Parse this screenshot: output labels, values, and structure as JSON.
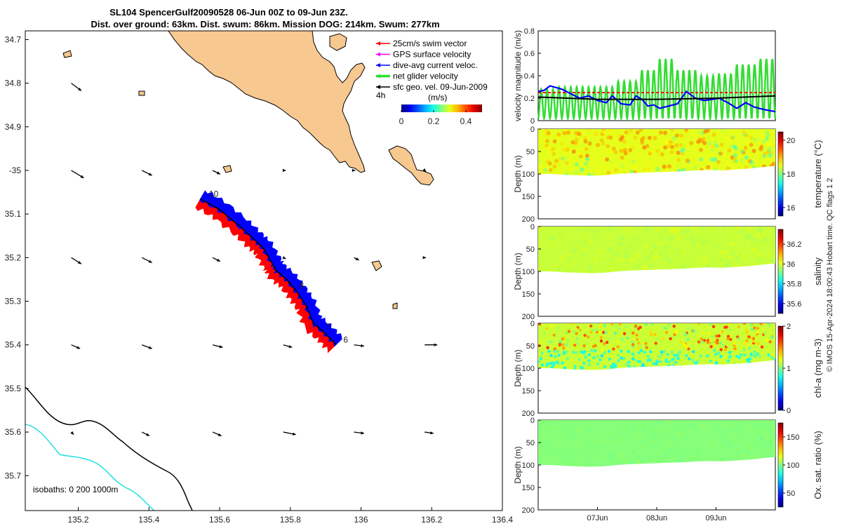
{
  "title": {
    "line1": "SL104 SpencerGulf20090528 06-Jun 00Z to 09-Jun 23Z.",
    "line2": "Dist. over ground: 63km. Dist. swum: 86km. Mission DOG: 214km. Swum: 277km"
  },
  "colors": {
    "land": "#f7c890",
    "glider_red": "#ff0000",
    "glider_blue": "#0000ff",
    "net_green": "#33dd33",
    "isobath0": "#000000",
    "isobath200": "#22e0e0"
  },
  "chart_data": [
    {
      "id": "map",
      "type": "scatter",
      "title": "SL104 SpencerGulf20090528 06-Jun 00Z to 09-Jun 23Z.",
      "xlabel": "",
      "ylabel": "",
      "xlim": [
        135.05,
        136.4
      ],
      "ylim": [
        34.68,
        35.78
      ],
      "xticks": [
        135.2,
        135.4,
        135.6,
        135.8,
        136,
        136.2,
        136.4
      ],
      "xtick_labels": [
        "135.2",
        "135.4",
        "135.6",
        "135.8",
        "136",
        "136.2",
        "136.4"
      ],
      "yticks": [
        34.7,
        34.8,
        34.9,
        35.0,
        35.1,
        35.2,
        35.3,
        35.4,
        35.5,
        35.6,
        35.7
      ],
      "ytick_labels": [
        "34.7",
        "34.8",
        "34.9",
        "-35",
        "35.1",
        "35.2",
        "35.3",
        "35.4",
        "35.5",
        "35.6",
        "35.7"
      ],
      "legend": [
        {
          "label": "25cm/s swim vector",
          "color": "#ff0000"
        },
        {
          "label": "GPS surface velocity",
          "color": "#ff00ff"
        },
        {
          "label": "dive-avg current veloc.",
          "color": "#0000ff"
        },
        {
          "label": "net glider velocity",
          "color": "#33dd33"
        },
        {
          "label": "sfc geo. vel. 09-Jun-2009",
          "color": "#000000"
        }
      ],
      "colorbar": {
        "label": "(m/s)",
        "ticks": [
          "0",
          "0.2",
          "0.4"
        ],
        "range": [
          0,
          0.5
        ],
        "note": "4h"
      },
      "isobath_label": "isobaths: 0   200  1000m",
      "track": [
        [
          135.545,
          35.065
        ],
        [
          135.6,
          35.09
        ],
        [
          135.66,
          35.13
        ],
        [
          135.7,
          35.16
        ],
        [
          135.725,
          35.18
        ],
        [
          135.75,
          35.215
        ],
        [
          135.76,
          35.23
        ],
        [
          135.79,
          35.25
        ],
        [
          135.82,
          35.28
        ],
        [
          135.845,
          35.31
        ],
        [
          135.865,
          35.35
        ],
        [
          135.9,
          35.375
        ],
        [
          135.93,
          35.4
        ]
      ],
      "track_labels": [
        {
          "text": "10",
          "lon": 135.57,
          "lat": 35.06
        },
        {
          "text": "8",
          "lon": 135.825,
          "lat": 35.27
        },
        {
          "text": "7",
          "lon": 135.9,
          "lat": 35.365
        },
        {
          "text": "6",
          "lon": 135.95,
          "lat": 35.395
        }
      ],
      "vector_grid": {
        "lons": [
          135.2,
          135.4,
          135.6,
          135.8,
          136.0,
          136.2
        ],
        "lats": [
          34.8,
          35.0,
          35.2,
          35.4,
          35.6
        ],
        "u": [
          [
            0.08,
            0,
            0,
            0,
            0,
            0
          ],
          [
            0.1,
            0.08,
            0.06,
            0.02,
            0.01,
            0.01
          ],
          [
            0.08,
            0.08,
            0.06,
            0.02,
            0.04,
            0.01
          ],
          [
            0.07,
            0.08,
            0.08,
            0.07,
            0.08,
            0.1
          ],
          [
            0.02,
            0.06,
            0.07,
            0.1,
            0.08,
            0.07
          ]
        ],
        "v": [
          [
            -0.06,
            0,
            0,
            0,
            0,
            0
          ],
          [
            -0.06,
            -0.04,
            -0.03,
            0,
            0,
            -0.01
          ],
          [
            -0.05,
            -0.04,
            -0.03,
            -0.01,
            -0.02,
            0
          ],
          [
            -0.03,
            -0.03,
            -0.02,
            -0.02,
            -0.01,
            0
          ],
          [
            -0.02,
            -0.03,
            -0.03,
            -0.02,
            -0.01,
            -0.01
          ]
        ]
      }
    },
    {
      "id": "velocity",
      "type": "line",
      "ylabel": "velocity magnitude (m/s)",
      "xlim": [
        6.0,
        10.0
      ],
      "ylim": [
        0,
        0.8
      ],
      "yticks": [
        0,
        0.2,
        0.4,
        0.6,
        0.8
      ],
      "ytick_labels": [
        "0",
        "0.2",
        "0.4",
        "0.6",
        "0.8"
      ],
      "series": [
        {
          "name": "net glider velocity",
          "color": "#33dd33",
          "type": "oscillating",
          "period_days": 0.1,
          "min": 0.02,
          "peaks": [
            0.28,
            0.3,
            0.3,
            0.3,
            0.35,
            0.45,
            0.55,
            0.45,
            0.4,
            0.42,
            0.5,
            0.55
          ]
        },
        {
          "name": "dive-avg current veloc.",
          "color": "#0000ff",
          "x": [
            6.0,
            6.1,
            6.2,
            6.4,
            6.55,
            6.7,
            6.85,
            7.0,
            7.15,
            7.25,
            7.4,
            7.55,
            7.65,
            7.75,
            7.85,
            7.95,
            8.05,
            8.2,
            8.35,
            8.5,
            8.65,
            8.8,
            8.95,
            9.05,
            9.2,
            9.35,
            9.5,
            9.65,
            9.8,
            10.0
          ],
          "y": [
            0.26,
            0.27,
            0.31,
            0.28,
            0.24,
            0.2,
            0.22,
            0.18,
            0.16,
            0.22,
            0.15,
            0.14,
            0.22,
            0.19,
            0.13,
            0.14,
            0.11,
            0.13,
            0.15,
            0.26,
            0.2,
            0.18,
            0.19,
            0.2,
            0.16,
            0.11,
            0.16,
            0.12,
            0.1,
            0.08
          ]
        },
        {
          "name": "sfc geo. vel.",
          "color": "#000000",
          "x": [
            6.0,
            7.0,
            8.0,
            9.0,
            10.0
          ],
          "y": [
            0.21,
            0.19,
            0.19,
            0.2,
            0.22
          ]
        },
        {
          "name": "swim vector",
          "color": "#ff0000",
          "dashed": true,
          "x": [
            6.0,
            10.0
          ],
          "y": [
            0.25,
            0.25
          ]
        }
      ]
    },
    {
      "id": "temperature",
      "type": "heatmap",
      "ylabel": "Depth (m)",
      "ylim": [
        200,
        0
      ],
      "yticks": [
        "0",
        "50",
        "100",
        "150",
        "200"
      ],
      "colorbar": {
        "label": "temperature (°C)",
        "ticks": [
          "16",
          "18",
          "20"
        ],
        "range": [
          15.5,
          20.5
        ],
        "tickvals": [
          16,
          18,
          20
        ]
      },
      "depth_profile": [
        100,
        100,
        102,
        103,
        104,
        103,
        100,
        98,
        97,
        96,
        95,
        94,
        92,
        91,
        92,
        90,
        88,
        85,
        82
      ],
      "value_range": [
        17.5,
        19.5
      ]
    },
    {
      "id": "salinity",
      "type": "heatmap",
      "ylabel": "Depth (m)",
      "ylim": [
        200,
        0
      ],
      "yticks": [
        "0",
        "50",
        "100",
        "150",
        "200"
      ],
      "colorbar": {
        "label": "salinity",
        "ticks": [
          "35.6",
          "35.8",
          "36",
          "36.2"
        ],
        "range": [
          35.5,
          36.35
        ],
        "tickvals": [
          35.6,
          35.8,
          36,
          36.2
        ]
      },
      "depth_profile": [
        100,
        100,
        102,
        103,
        104,
        103,
        100,
        98,
        97,
        96,
        95,
        94,
        92,
        91,
        92,
        90,
        88,
        85,
        82
      ],
      "value_range": [
        35.95,
        36.02
      ]
    },
    {
      "id": "chla",
      "type": "heatmap",
      "ylabel": "Depth (m)",
      "ylim": [
        200,
        0
      ],
      "yticks": [
        "0",
        "50",
        "100",
        "150",
        "200"
      ],
      "colorbar": {
        "label": "chl-a (mg m-3)",
        "ticks": [
          "0",
          "1",
          "2"
        ],
        "range": [
          0,
          2
        ],
        "tickvals": [
          0,
          1,
          2
        ]
      },
      "depth_profile": [
        100,
        100,
        102,
        103,
        104,
        103,
        100,
        98,
        97,
        96,
        95,
        94,
        92,
        91,
        92,
        90,
        88,
        85,
        82
      ],
      "value_range": [
        0.7,
        1.6
      ]
    },
    {
      "id": "oxygen",
      "type": "heatmap",
      "ylabel": "Depth (m)",
      "ylim": [
        200,
        0
      ],
      "yticks": [
        "0",
        "50",
        "100",
        "150",
        "200"
      ],
      "colorbar": {
        "label": "Ox. sat. ratio (%)",
        "ticks": [
          "50",
          "100",
          "150"
        ],
        "range": [
          25,
          175
        ],
        "tickvals": [
          50,
          100,
          150
        ]
      },
      "depth_profile": [
        100,
        100,
        102,
        103,
        104,
        103,
        100,
        98,
        97,
        96,
        95,
        94,
        92,
        91,
        92,
        90,
        88,
        85,
        82
      ],
      "value_range": [
        98,
        104
      ],
      "xticks": [
        "07Jun",
        "08Jun",
        "09Jun"
      ]
    }
  ],
  "footer": "© IMOS 15-Apr-2024 18:00:43 Hobart time. QC flags 1  2"
}
